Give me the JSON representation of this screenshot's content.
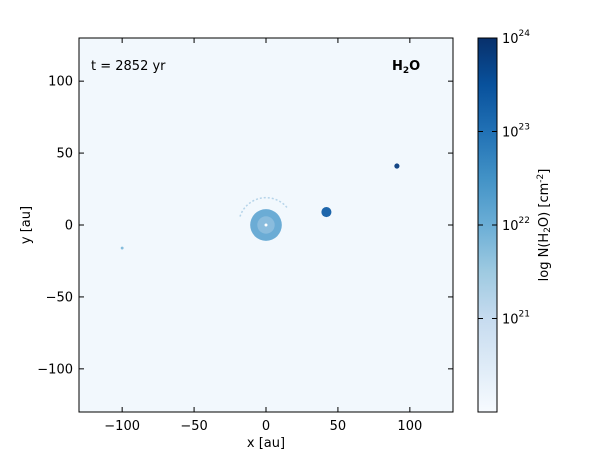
{
  "chart_data": {
    "type": "heatmap",
    "title": "",
    "xlabel": "x [au]",
    "ylabel": "y [au]",
    "xlim": [
      -130,
      130
    ],
    "ylim": [
      -130,
      130
    ],
    "x_ticks": [
      -100,
      -50,
      0,
      50,
      100
    ],
    "x_tick_labels": [
      "−100",
      "−50",
      "0",
      "50",
      "100"
    ],
    "y_ticks": [
      -100,
      -50,
      0,
      50,
      100
    ],
    "y_tick_labels": [
      "−100",
      "−50",
      "0",
      "50",
      "100"
    ],
    "time_label": "t = 2852 yr",
    "species": {
      "main": "H",
      "sub": "2",
      "tail": "O"
    },
    "grid": false,
    "colorbar": {
      "label": {
        "pre": "log N(H",
        "sub": "2",
        "mid": "O) [cm",
        "sup": "-2",
        "post": "]"
      },
      "scale": "log",
      "range": [
        1e+20,
        1e+24
      ],
      "ticks": [
        {
          "value": 1e+21,
          "base": "10",
          "exp": "21"
        },
        {
          "value": 1e+22,
          "base": "10",
          "exp": "22"
        },
        {
          "value": 1e+23,
          "base": "10",
          "exp": "23"
        },
        {
          "value": 1e+24,
          "base": "10",
          "exp": "24"
        }
      ],
      "colors": [
        "#f7fbff",
        "#deebf7",
        "#c6dbef",
        "#9ecae1",
        "#6baed6",
        "#4292c6",
        "#2171b5",
        "#08519c",
        "#08306b"
      ]
    },
    "background_logN": 20.1,
    "features": [
      {
        "name": "central disk",
        "x": 0,
        "y": 0,
        "r": 11,
        "logN": 22.1,
        "core_logN": 21.0
      },
      {
        "name": "clump",
        "x": 42,
        "y": 9,
        "r": 3.5,
        "logN": 23.3
      },
      {
        "name": "compact source",
        "x": 91,
        "y": 41,
        "r": 1.8,
        "logN": 23.8
      },
      {
        "name": "faint source",
        "x": -100,
        "y": -16,
        "r": 1.0,
        "logN": 21.8
      },
      {
        "name": "faint arc",
        "x": 0,
        "y": 0,
        "r": 19,
        "logN": 21.2,
        "angle_from": 40,
        "angle_to": 165
      }
    ]
  }
}
